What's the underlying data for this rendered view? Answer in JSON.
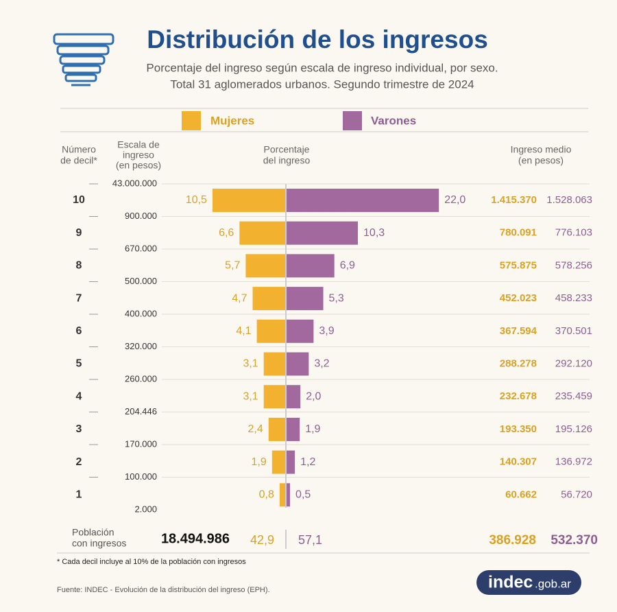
{
  "chart_data": {
    "type": "butterfly",
    "title": "Distribución de los ingresos",
    "subtitle": [
      "Porcentaje del ingreso según escala de ingreso individual, por sexo.",
      "Total 31 aglomerados urbanos. Segundo trimestre de 2024"
    ],
    "headers": {
      "decile": [
        "Número",
        "de decil*"
      ],
      "scale": [
        "Escala de",
        "ingreso",
        "(en pesos)"
      ],
      "percentage": [
        "Porcentaje",
        "del ingreso"
      ],
      "income": [
        "Ingreso medio",
        "(en pesos)"
      ]
    },
    "categories": [
      "10",
      "9",
      "8",
      "7",
      "6",
      "5",
      "4",
      "3",
      "2",
      "1"
    ],
    "scale_bounds": [
      {
        "value": 43000000,
        "label": "43.000.000"
      },
      {
        "value": 900000,
        "label": "900.000"
      },
      {
        "value": 670000,
        "label": "670.000"
      },
      {
        "value": 500000,
        "label": "500.000"
      },
      {
        "value": 400000,
        "label": "400.000"
      },
      {
        "value": 320000,
        "label": "320.000"
      },
      {
        "value": 260000,
        "label": "260.000"
      },
      {
        "value": 204446,
        "label": "204.446"
      },
      {
        "value": 170000,
        "label": "170.000"
      },
      {
        "value": 100000,
        "label": "100.000"
      },
      {
        "value": 2000,
        "label": "2.000"
      }
    ],
    "series": [
      {
        "name": "Mujeres",
        "color": "#f2b22f",
        "text_color": "#d9a126",
        "values": [
          10.5,
          6.6,
          5.7,
          4.7,
          4.1,
          3.1,
          3.1,
          2.4,
          1.9,
          0.8
        ],
        "value_labels": [
          "10,5",
          "6,6",
          "5,7",
          "4,7",
          "4,1",
          "3,1",
          "3,1",
          "2,4",
          "1,9",
          "0,8"
        ],
        "mean_income": [
          1415370,
          780091,
          575875,
          452023,
          367594,
          288278,
          232678,
          193350,
          140307,
          60662
        ],
        "mean_income_labels": [
          "1.415.370",
          "780.091",
          "575.875",
          "452.023",
          "367.594",
          "288.278",
          "232.678",
          "193.350",
          "140.307",
          "60.662"
        ],
        "total": 42.9,
        "total_label": "42,9",
        "mean_income_total": 386928,
        "mean_income_total_label": "386.928"
      },
      {
        "name": "Varones",
        "color": "#a2699f",
        "text_color": "#8d5f91",
        "values": [
          22.0,
          10.3,
          6.9,
          5.3,
          3.9,
          3.2,
          2.0,
          1.9,
          1.2,
          0.5
        ],
        "value_labels": [
          "22,0",
          "10,3",
          "6,9",
          "5,3",
          "3,9",
          "3,2",
          "2,0",
          "1,9",
          "1,2",
          "0,5"
        ],
        "mean_income": [
          1528063,
          776103,
          578256,
          458233,
          370501,
          292120,
          235459,
          195126,
          136972,
          56720
        ],
        "mean_income_labels": [
          "1.528.063",
          "776.103",
          "578.256",
          "458.233",
          "370.501",
          "292.120",
          "235.459",
          "195.126",
          "136.972",
          "56.720"
        ],
        "total": 57.1,
        "total_label": "57,1",
        "mean_income_total": 532370,
        "mean_income_total_label": "532.370"
      }
    ],
    "population_label": [
      "Población",
      "con ingresos"
    ],
    "population": {
      "value": 18494986,
      "label": "18.494.986"
    },
    "footnote": "* Cada decil incluye al 10% de la población con ingresos",
    "source": "Fuente: INDEC - Evolución de la distribución del ingreso (EPH).",
    "logo": [
      "indec",
      ".gob.ar"
    ]
  }
}
